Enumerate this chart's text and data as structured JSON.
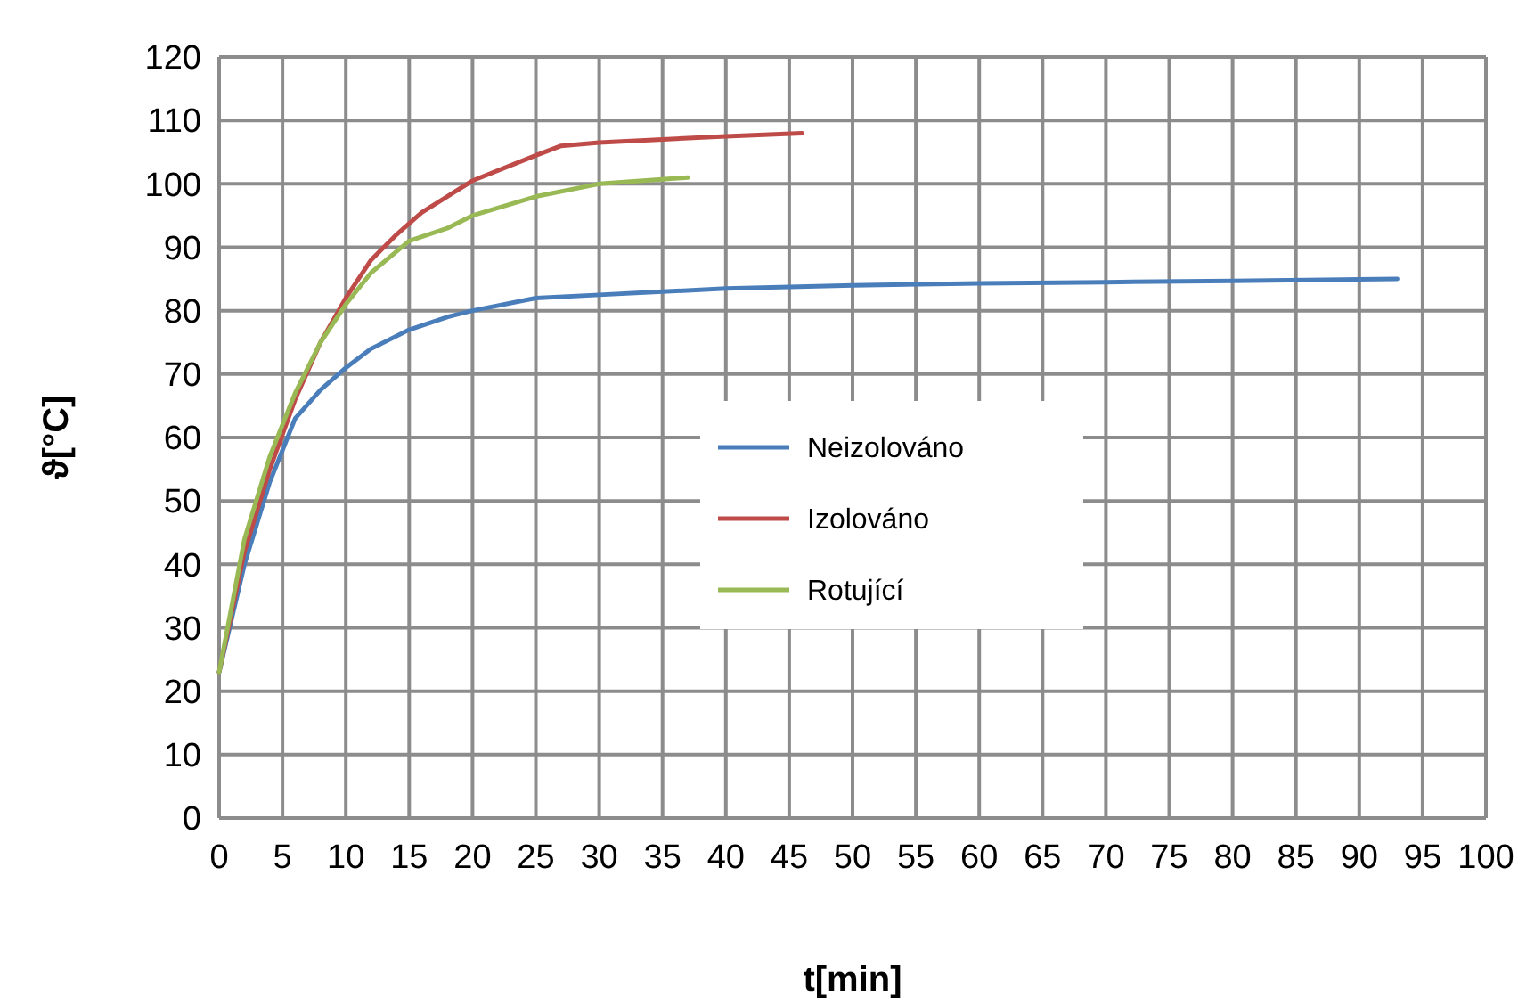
{
  "chart_data": {
    "type": "line",
    "xlabel": "t[min]",
    "ylabel": "ϑ[°C]",
    "xlim": [
      0,
      100
    ],
    "xticks": [
      0,
      5,
      10,
      15,
      20,
      25,
      30,
      35,
      40,
      45,
      50,
      55,
      60,
      65,
      70,
      75,
      80,
      85,
      90,
      95,
      100
    ],
    "ylim": [
      0,
      120
    ],
    "yticks": [
      0,
      10,
      20,
      30,
      40,
      50,
      60,
      70,
      80,
      90,
      100,
      110,
      120
    ],
    "grid": true,
    "legend": "center",
    "line_style": "solid",
    "marker": "none",
    "series": [
      {
        "name": "Neizolováno",
        "color": "#4a7ebb",
        "x": [
          0,
          2,
          4,
          5,
          6,
          8,
          10,
          12,
          15,
          18,
          20,
          25,
          30,
          35,
          40,
          50,
          60,
          70,
          80,
          93
        ],
        "values": [
          23,
          40,
          53,
          58,
          63,
          67.5,
          71,
          74,
          77,
          79,
          80,
          82,
          82.5,
          83,
          83.5,
          84,
          84.3,
          84.5,
          84.7,
          85
        ]
      },
      {
        "name": "Izolováno",
        "color": "#be4b48",
        "x": [
          0,
          2,
          4,
          6,
          8,
          10,
          12,
          14,
          16,
          18,
          20,
          25,
          27,
          30,
          35,
          40,
          46
        ],
        "values": [
          23,
          42,
          55,
          66,
          75,
          82,
          88,
          92,
          95.5,
          98,
          100.5,
          104.5,
          106,
          106.5,
          107,
          107.5,
          108
        ]
      },
      {
        "name": "Rotující",
        "color": "#98b954",
        "x": [
          0,
          2,
          4,
          6,
          8,
          10,
          12,
          15,
          18,
          20,
          25,
          30,
          37
        ],
        "values": [
          23,
          44,
          57,
          67,
          75,
          81,
          86,
          91,
          93,
          95,
          98,
          100,
          101
        ]
      }
    ]
  }
}
